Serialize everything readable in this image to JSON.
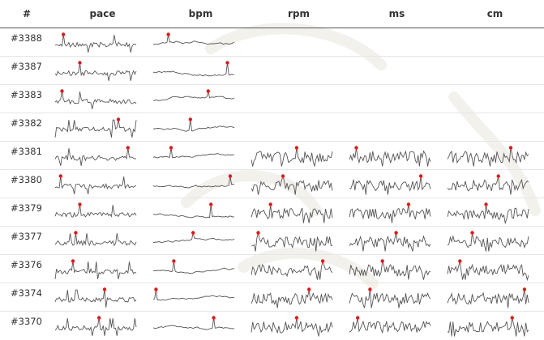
{
  "headers": [
    "#",
    "pace",
    "bpm",
    "rpm",
    "ms",
    "cm"
  ],
  "colors": {
    "line": "#555555",
    "marker": "#ee1111",
    "rule": "#555555"
  },
  "rows": [
    {
      "id": "#3388",
      "series": [
        "pace",
        "bpm"
      ]
    },
    {
      "id": "#3387",
      "series": [
        "pace",
        "bpm"
      ]
    },
    {
      "id": "#3383",
      "series": [
        "pace",
        "bpm"
      ]
    },
    {
      "id": "#3382",
      "series": [
        "pace",
        "bpm"
      ]
    },
    {
      "id": "#3381",
      "series": [
        "pace",
        "bpm",
        "rpm",
        "ms",
        "cm"
      ]
    },
    {
      "id": "#3380",
      "series": [
        "pace",
        "bpm",
        "rpm",
        "ms",
        "cm"
      ]
    },
    {
      "id": "#3379",
      "series": [
        "pace",
        "bpm",
        "rpm",
        "ms",
        "cm"
      ]
    },
    {
      "id": "#3377",
      "series": [
        "pace",
        "bpm",
        "rpm",
        "ms",
        "cm"
      ]
    },
    {
      "id": "#3376",
      "series": [
        "pace",
        "bpm",
        "rpm",
        "ms",
        "cm"
      ]
    },
    {
      "id": "#3374",
      "series": [
        "pace",
        "bpm",
        "rpm",
        "ms",
        "cm"
      ]
    },
    {
      "id": "#3370",
      "series": [
        "pace",
        "bpm",
        "rpm",
        "ms",
        "cm"
      ]
    }
  ]
}
